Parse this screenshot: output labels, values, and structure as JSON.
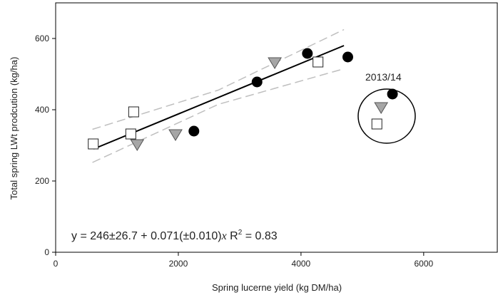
{
  "chart_data": {
    "type": "scatter",
    "x_label": "Spring lucerne yield (kg DM/ha)",
    "y_label": "Total spring LWt prodcution (kg/ha)",
    "xlim": [
      0,
      7200
    ],
    "xticks": [
      0,
      2000,
      4000,
      6000
    ],
    "ylim": [
      0,
      700
    ],
    "yticks": [
      0,
      200,
      400,
      600
    ],
    "series": [
      {
        "marker": "circle",
        "color": "#000000",
        "x": [
          2254,
          3283,
          4104,
          4763,
          5491
        ],
        "values": [
          340,
          478,
          558,
          548,
          444
        ]
      },
      {
        "marker": "triangle",
        "color": "#a6a6a6",
        "x": [
          1329,
          1954,
          3572,
          5306
        ],
        "values": [
          302,
          330,
          532,
          406
        ]
      },
      {
        "marker": "square",
        "color": "#ffffff",
        "x": [
          613,
          1225,
          1272,
          4277,
          5237
        ],
        "values": [
          304,
          332,
          394,
          534,
          360
        ]
      }
    ],
    "lines": [
      {
        "color": "#000000",
        "dashed": false,
        "x": [
          620,
          4700
        ],
        "values": [
          290,
          580
        ]
      },
      {
        "color": "#bfbfbf",
        "dashed": true,
        "x": [
          600,
          2650,
          4700
        ],
        "values": [
          345,
          455,
          625
        ]
      },
      {
        "color": "#bfbfbf",
        "dashed": true,
        "x": [
          600,
          2650,
          4700
        ],
        "values": [
          252,
          415,
          515
        ]
      }
    ],
    "annotations": {
      "group_label": "2013/14",
      "equation": [
        "y = 246±26.7 + 0.071(±0.010)",
        "x",
        " R",
        "2",
        " = 0.83"
      ]
    }
  }
}
